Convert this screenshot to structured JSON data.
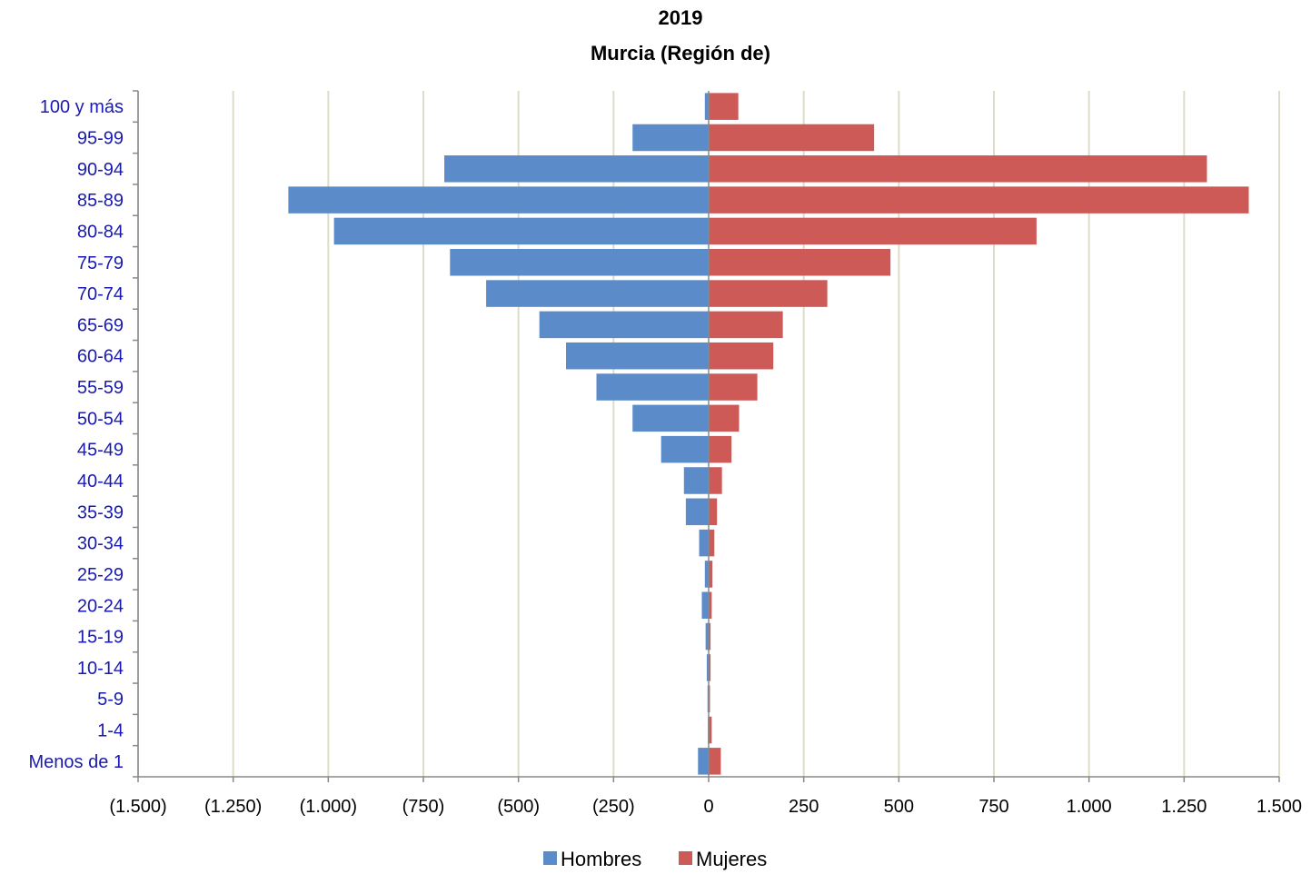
{
  "chart_data": {
    "type": "bar",
    "orientation": "horizontal",
    "title": [
      "2019",
      "Murcia (Región de)"
    ],
    "categories": [
      "100 y más",
      "95-99",
      "90-94",
      "85-89",
      "80-84",
      "75-79",
      "70-74",
      "65-69",
      "60-64",
      "55-59",
      "50-54",
      "45-49",
      "40-44",
      "35-39",
      "30-34",
      "25-29",
      "20-24",
      "15-19",
      "10-14",
      "5-9",
      "1-4",
      "Menos de 1"
    ],
    "series": [
      {
        "name": "Hombres",
        "color": "#5b8cc9",
        "values": [
          -10,
          -200,
          -695,
          -1105,
          -985,
          -680,
          -585,
          -445,
          -375,
          -295,
          -200,
          -125,
          -65,
          -60,
          -25,
          -10,
          -18,
          -8,
          -5,
          -3,
          -2,
          -28
        ]
      },
      {
        "name": "Mujeres",
        "color": "#cd5a57",
        "values": [
          78,
          435,
          1310,
          1420,
          862,
          478,
          312,
          195,
          170,
          128,
          80,
          60,
          35,
          22,
          15,
          10,
          8,
          5,
          5,
          3,
          8,
          32
        ]
      }
    ],
    "xlim": [
      -1500,
      1500
    ],
    "xticks": [
      -1500,
      -1250,
      -1000,
      -750,
      -500,
      -250,
      0,
      250,
      500,
      750,
      1000,
      1250,
      1500
    ],
    "xtick_labels": [
      "(1.500)",
      "(1.250)",
      "(1.000)",
      "(750)",
      "(500)",
      "(250)",
      "0",
      "250",
      "500",
      "750",
      "1.000",
      "1.250",
      "1.500"
    ],
    "grid": true,
    "legend_position": "bottom",
    "colors": {
      "gridline": "#dedcc8",
      "axis": "#888888",
      "category_text": "#1a1ab0"
    }
  }
}
